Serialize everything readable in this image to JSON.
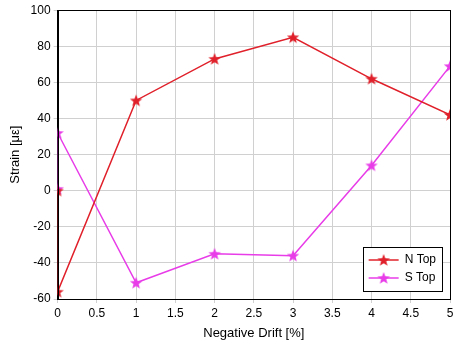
{
  "chart_data": {
    "type": "line",
    "x_label": "Negative Drift [%]",
    "y_label": "Strain [με]",
    "x": [
      0,
      0,
      1,
      2,
      3,
      4,
      5
    ],
    "series": [
      {
        "name": "N Top",
        "color": "#e0202a",
        "marker": "star",
        "values": [
          0,
          -56,
          50,
          73,
          85,
          62,
          42
        ]
      },
      {
        "name": "S Top",
        "color": "#e83ce8",
        "marker": "star",
        "values": [
          1,
          32,
          -51,
          -35,
          -36,
          14,
          69
        ]
      }
    ],
    "xlim": [
      0,
      5
    ],
    "xticks": [
      0,
      0.5,
      1,
      1.5,
      2,
      2.5,
      3,
      3.5,
      4,
      4.5,
      5
    ],
    "ylim": [
      -60,
      100
    ],
    "yticks": [
      -60,
      -40,
      -20,
      0,
      20,
      40,
      60,
      80,
      100
    ],
    "grid": true,
    "legend": "lower right"
  }
}
